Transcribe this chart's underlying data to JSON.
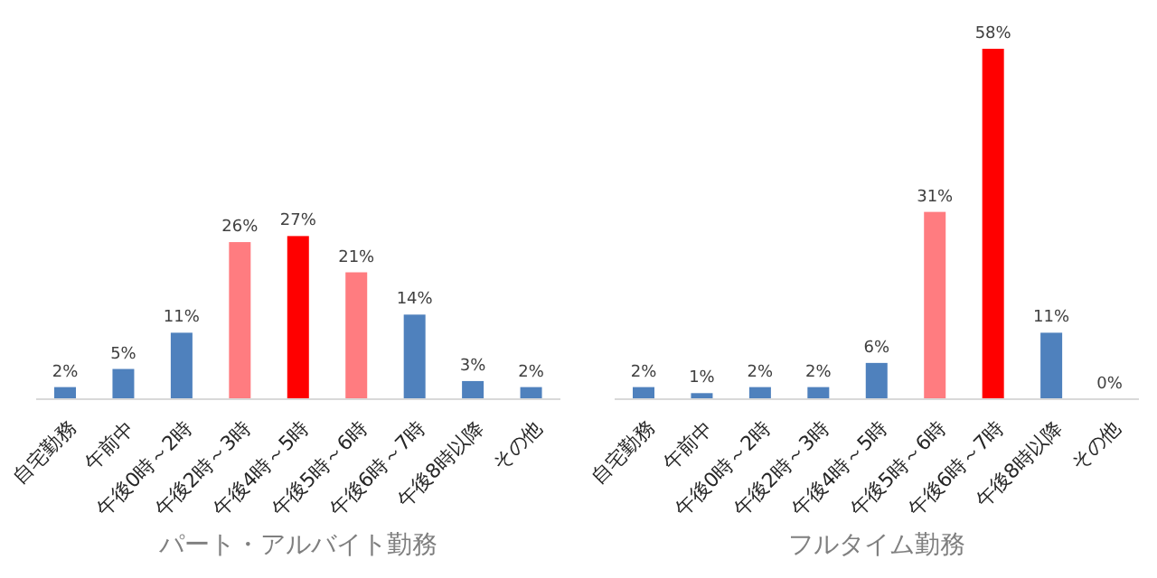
{
  "chart_data": [
    {
      "type": "bar",
      "xlabel": "パート・アルバイト勤務",
      "categories": [
        "自宅勤務",
        "午前中",
        "午後0時～2時",
        "午後2時～3時",
        "午後4時～5時",
        "午後5時～6時",
        "午後6時～7時",
        "午後8時以降",
        "その他"
      ],
      "values": [
        2,
        5,
        11,
        26,
        27,
        21,
        14,
        3,
        2
      ],
      "value_labels": [
        "2%",
        "5%",
        "11%",
        "26%",
        "27%",
        "21%",
        "14%",
        "3%",
        "2%"
      ],
      "colors": [
        "#4f81bd",
        "#4f81bd",
        "#4f81bd",
        "#ff7c80",
        "#ff0000",
        "#ff7c80",
        "#4f81bd",
        "#4f81bd",
        "#4f81bd"
      ]
    },
    {
      "type": "bar",
      "xlabel": "フルタイム勤務",
      "categories": [
        "自宅勤務",
        "午前中",
        "午後0時～2時",
        "午後2時～3時",
        "午後4時～5時",
        "午後5時～6時",
        "午後6時～7時",
        "午後8時以降",
        "その他"
      ],
      "values": [
        2,
        1,
        2,
        2,
        6,
        31,
        58,
        11,
        0
      ],
      "value_labels": [
        "2%",
        "1%",
        "2%",
        "2%",
        "6%",
        "31%",
        "58%",
        "11%",
        "0%"
      ],
      "colors": [
        "#4f81bd",
        "#4f81bd",
        "#4f81bd",
        "#4f81bd",
        "#4f81bd",
        "#ff7c80",
        "#ff0000",
        "#4f81bd",
        "#4f81bd"
      ]
    }
  ]
}
